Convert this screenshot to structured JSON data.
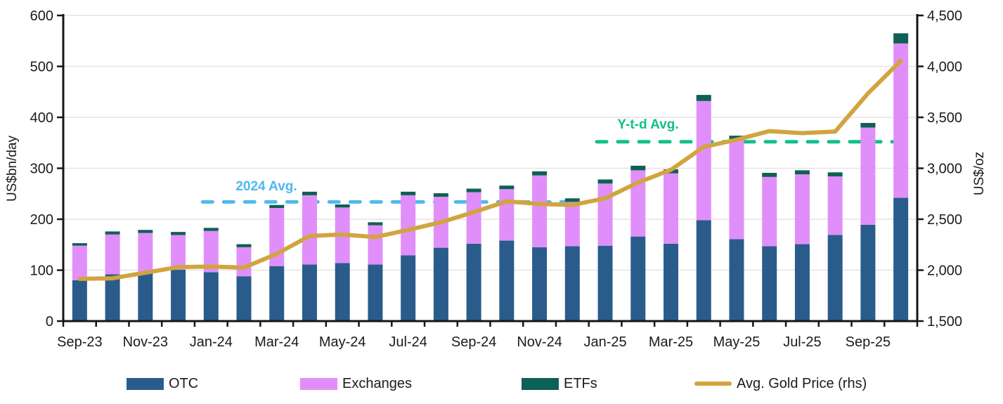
{
  "chart_data": {
    "type": "stacked-bar+line",
    "categories": [
      "Sep-23",
      "Oct-23",
      "Nov-23",
      "Dec-23",
      "Jan-24",
      "Feb-24",
      "Mar-24",
      "Apr-24",
      "May-24",
      "Jun-24",
      "Jul-24",
      "Aug-24",
      "Sep-24",
      "Oct-24",
      "Nov-24",
      "Dec-24",
      "Jan-25",
      "Feb-25",
      "Mar-25",
      "Apr-25",
      "May-25",
      "Jun-25",
      "Jul-25",
      "Aug-25",
      "Sep-25",
      "Oct-25"
    ],
    "x_tick_labels": [
      "Sep-23",
      "Nov-23",
      "Jan-24",
      "Mar-24",
      "May-24",
      "Jul-24",
      "Sep-24",
      "Nov-24",
      "Jan-25",
      "Mar-25",
      "May-25",
      "Jul-25",
      "Sep-25"
    ],
    "series": [
      {
        "name": "OTC",
        "type": "bar",
        "axis": "left",
        "color": "#2A5C8B",
        "values": [
          80,
          92,
          97,
          101,
          96,
          88,
          108,
          111,
          114,
          111,
          129,
          144,
          152,
          158,
          145,
          147,
          148,
          166,
          152,
          198,
          161,
          147,
          151,
          169,
          189,
          242
        ]
      },
      {
        "name": "Exchanges",
        "type": "bar",
        "axis": "left",
        "color": "#E08FFA",
        "values": [
          68,
          78,
          76,
          68,
          81,
          57,
          114,
          136,
          109,
          77,
          118,
          100,
          101,
          101,
          141,
          87,
          122,
          130,
          138,
          234,
          195,
          136,
          137,
          115,
          191,
          303
        ]
      },
      {
        "name": "ETFs",
        "type": "bar",
        "axis": "left",
        "color": "#0F6054",
        "values": [
          5,
          6,
          6,
          6,
          6,
          6,
          6,
          7,
          6,
          6,
          7,
          7,
          7,
          7,
          8,
          7,
          8,
          9,
          8,
          12,
          8,
          8,
          8,
          8,
          9,
          20
        ]
      },
      {
        "name": "Avg. Gold Price (rhs)",
        "type": "line",
        "axis": "right",
        "color": "#D2A440",
        "values": [
          1915,
          1920,
          1975,
          2030,
          2035,
          2025,
          2160,
          2335,
          2350,
          2325,
          2395,
          2470,
          2570,
          2675,
          2650,
          2640,
          2705,
          2860,
          2985,
          3210,
          3280,
          3365,
          3345,
          3360,
          3735,
          4055
        ]
      }
    ],
    "left_axis": {
      "title": "US$bn/day",
      "min": 0,
      "max": 600,
      "tick_step": 100,
      "tick_labels": [
        "0",
        "100",
        "200",
        "300",
        "400",
        "500",
        "600"
      ]
    },
    "right_axis": {
      "title": "US$/oz",
      "min": 1500,
      "max": 4500,
      "tick_step": 500,
      "tick_labels": [
        "1,500",
        "2,000",
        "2,500",
        "3,000",
        "3,500",
        "4,000",
        "4,500"
      ]
    },
    "annotations": [
      {
        "label": "2024 Avg.",
        "value": 234,
        "color": "#4FB9EE",
        "from": "Jan-24",
        "to": "Dec-24",
        "style": "dashed"
      },
      {
        "label": "Y-t-d Avg.",
        "value": 352,
        "color": "#10C08C",
        "from": "Jan-25",
        "to": "Oct-25",
        "style": "dashed"
      }
    ],
    "grid": true,
    "legend_position": "bottom"
  },
  "legend": {
    "items": [
      {
        "label": "OTC",
        "color": "#2A5C8B",
        "swatch": "rect"
      },
      {
        "label": "Exchanges",
        "color": "#E08FFA",
        "swatch": "rect"
      },
      {
        "label": "ETFs",
        "color": "#0F6054",
        "swatch": "rect"
      },
      {
        "label": "Avg. Gold Price (rhs)",
        "color": "#D2A440",
        "swatch": "line"
      }
    ]
  },
  "colors": {
    "grid": "#E4E4E4",
    "axis": "#161616",
    "tick_text": "#1b1b1b"
  }
}
